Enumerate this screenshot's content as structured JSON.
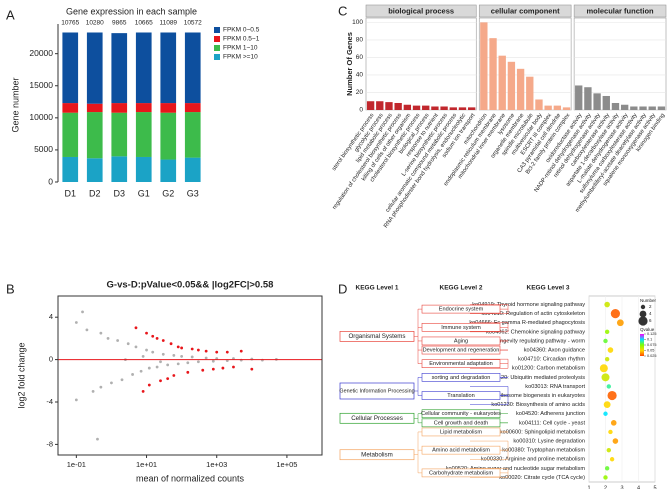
{
  "panel_labels": [
    "A",
    "B",
    "C",
    "D"
  ],
  "chart_data": [
    {
      "type": "stacked_bar",
      "title": "Gene expression in each sample",
      "y_label": "Gene number",
      "categories": [
        "D1",
        "D2",
        "D3",
        "G1",
        "G2",
        "G3"
      ],
      "annotations": [
        10765,
        10280,
        9865,
        10665,
        11089,
        10572
      ],
      "series": [
        {
          "name": "FPKM >=10",
          "color": "#1ba3c6",
          "values": [
            3900,
            3700,
            4000,
            3900,
            3500,
            3800
          ]
        },
        {
          "name": "FPKM 1~10",
          "color": "#3dbb4b",
          "values": [
            6900,
            7200,
            6800,
            7000,
            7300,
            7100
          ]
        },
        {
          "name": "FPKM 0.5~1",
          "color": "#e8161b",
          "values": [
            1500,
            1300,
            1500,
            1400,
            1500,
            1400
          ]
        },
        {
          "name": "FPKM 0~0.5",
          "color": "#0d4f9e",
          "values": [
            11000,
            11100,
            10900,
            11000,
            11000,
            11000
          ]
        }
      ],
      "ylim": [
        0,
        24000
      ],
      "yticks": [
        0,
        5000,
        10000,
        15000,
        20000
      ]
    },
    {
      "type": "scatter",
      "title": "G-vs-D:pValue<0.05&& |log2FC|>0.58",
      "x_label": "mean of normalized counts",
      "y_label": "log2 fold change",
      "log_x": true,
      "xlim": [
        0.03,
        1000000
      ],
      "xticks": [
        {
          "value": 0.1,
          "label": "1e-01"
        },
        {
          "value": 10,
          "label": "1e+01"
        },
        {
          "value": 1000,
          "label": "1e+03"
        },
        {
          "value": 100000,
          "label": "1e+05"
        }
      ],
      "ylim": [
        -9,
        6
      ],
      "yticks": [
        -8,
        -4,
        0,
        4
      ],
      "hline": 0,
      "hline_color": "#e8161b",
      "series": [
        {
          "color": "#b0b0b0",
          "x": [
            0.1,
            0.1,
            0.2,
            0.3,
            0.5,
            0.5,
            0.8,
            1,
            1.5,
            2,
            3,
            4,
            5,
            7,
            10,
            12,
            15,
            20,
            30,
            40,
            60,
            80,
            100,
            150,
            200,
            300,
            500,
            800,
            1000,
            2000,
            3000,
            5000,
            10000,
            20000,
            50000,
            0.15,
            0.4,
            2.5,
            8,
            25
          ],
          "y": [
            3.5,
            -3.8,
            2.8,
            -3,
            2.5,
            -2.6,
            2,
            -2.2,
            1.8,
            -1.9,
            1.5,
            -1.4,
            1.2,
            -1.1,
            0.9,
            -0.8,
            0.7,
            -0.7,
            0.5,
            -0.5,
            0.4,
            -0.4,
            0.3,
            -0.3,
            0.25,
            -0.2,
            0.15,
            -0.15,
            0.1,
            -0.1,
            0.1,
            -0.05,
            0.05,
            -0.05,
            0.02,
            4.5,
            -7.5,
            0,
            0.3,
            -0.2
          ]
        },
        {
          "color": "#e8161b",
          "x": [
            5,
            10,
            15,
            20,
            30,
            50,
            80,
            100,
            200,
            300,
            500,
            1000,
            2000,
            5000,
            8,
            12,
            25,
            40,
            60,
            150,
            400,
            800,
            1500,
            3000,
            10000
          ],
          "y": [
            3,
            2.5,
            2.2,
            2,
            1.8,
            1.5,
            1.2,
            1.1,
            1,
            0.9,
            0.8,
            0.7,
            0.7,
            0.8,
            -3,
            -2.4,
            -2,
            -1.8,
            -1.5,
            -1.2,
            -1,
            -0.9,
            -0.8,
            -0.7,
            -0.9
          ]
        }
      ]
    },
    {
      "type": "faceted_bar",
      "y_label": "Number  Of  Genes",
      "ylim": [
        0,
        105
      ],
      "yticks": [
        0,
        20,
        40,
        60,
        80,
        100
      ],
      "grid": true,
      "facets": [
        {
          "name": "biological process",
          "color": "#c1272d",
          "categories": [
            "sterol biosynthetic process",
            "glycolytic process",
            "lipid metabolic process",
            "regulation of cholesterol biosynthetic process",
            "killing of cells of other organism",
            "cholesterol biosynthetic process",
            "biological_process",
            "response to nutrient",
            "L-serine biosynthetic process",
            "cellular aromatic compound metabolic process",
            "RNA phosphodiester bond hydrolysis, endonucleolytic",
            "sodium ion transport"
          ],
          "values": [
            10,
            10,
            9,
            8,
            6,
            5,
            5,
            4,
            4,
            3,
            3,
            3
          ]
        },
        {
          "name": "cellular component",
          "color": "#f5a98a",
          "categories": [
            "mitochondrion",
            "endoplasmic reticulum membrane",
            "mitochondrial inner membrane",
            "lysosome",
            "organelle membrane",
            "spindle microtubule",
            "multivesicular body",
            "ESCRT III complex",
            "CA3 pyramidal cell dendrite",
            "Bcl-2 family protein complex"
          ],
          "values": [
            100,
            82,
            62,
            55,
            47,
            38,
            12,
            5,
            5,
            3
          ]
        },
        {
          "name": "molecular function",
          "color": "#8c8c8c",
          "categories": [
            "oxidoreductase activity",
            "NADP-retinol dehydrogenase activity",
            "retinol dehydrogenase activity",
            "carboxylesterase activity",
            "aspartate 1-decarboxylase activity",
            "L-malate dehydrogenase activity",
            "sulfonylurea carboxylesterase activity",
            "methylumbelliferyl-acetate deacetylase activity",
            "squalene monooxygenase activity",
            "kininogen binding"
          ],
          "values": [
            28,
            26,
            19,
            16,
            8,
            6,
            4,
            4,
            4,
            4
          ]
        }
      ]
    },
    {
      "type": "bubble",
      "headers": [
        "KEGG Level 1",
        "KEGG Level 2",
        "KEGG Level 3"
      ],
      "xlim": [
        1,
        5
      ],
      "xticks": [
        1,
        2,
        3,
        4,
        5
      ],
      "size_title": "Number",
      "size_ticks": [
        2,
        4,
        6
      ],
      "color_title": "Qvalue",
      "qlim": [
        0.025,
        0.125
      ],
      "qticks": [
        0.025,
        0.05,
        0.075,
        0.1,
        0.125
      ],
      "colorscale": [
        "#ff4500",
        "#ffd700",
        "#7fff00",
        "#00e5ff",
        "#ff00ff"
      ],
      "levels": [
        {
          "label": "Organismal Systems",
          "color": "#e8443a",
          "children": [
            {
              "label": "Endocrine system",
              "children": [
                {
                  "label": "ko04919: Thyroid hormone signaling pathway",
                  "x": 2.1,
                  "size": 3,
                  "q": 0.06
                },
                {
                  "label": "ko04810: Regulation of actin cytoskeleton",
                  "x": 2.6,
                  "size": 6,
                  "q": 0.03
                }
              ]
            },
            {
              "label": "Immune system",
              "children": [
                {
                  "label": "ko04666: Fc gamma R-mediated phagocytosis",
                  "x": 2.9,
                  "size": 4,
                  "q": 0.04
                },
                {
                  "label": "ko04062: Chemokine signaling pathway",
                  "x": 2.1,
                  "size": 2,
                  "q": 0.07
                }
              ]
            },
            {
              "label": "Aging",
              "children": [
                {
                  "label": "ko04212: Longevity regulating pathway - worm",
                  "x": 2.0,
                  "size": 2,
                  "q": 0.08
                }
              ]
            },
            {
              "label": "Development and regeneration",
              "children": [
                {
                  "label": "ko04360: Axon guidance",
                  "x": 2.3,
                  "size": 3,
                  "q": 0.05
                }
              ]
            },
            {
              "label": "Environmental adaptation",
              "children": [
                {
                  "label": "ko04710: Circadian rhythm",
                  "x": 2.1,
                  "size": 2,
                  "q": 0.06
                },
                {
                  "label": "ko01200: Carbon metabolism",
                  "x": 1.9,
                  "size": 5,
                  "q": 0.05
                }
              ]
            }
          ]
        },
        {
          "label": "Genetic Information Processing",
          "color": "#3a3ad0",
          "children": [
            {
              "label": "sorting and degradation",
              "children": [
                {
                  "label": "ko04120: Ubiquitin mediated proteolysis",
                  "x": 2.0,
                  "size": 5,
                  "q": 0.06
                }
              ]
            },
            {
              "label": "Translation",
              "children": [
                {
                  "label": "ko03013: RNA transport",
                  "x": 2.2,
                  "size": 2,
                  "q": 0.09
                },
                {
                  "label": "ko03008: Ribosome biogenesis in eukaryotes",
                  "x": 2.4,
                  "size": 6,
                  "q": 0.03
                },
                {
                  "label": "ko01230: Biosynthesis of amino acids",
                  "x": 2.1,
                  "size": 4,
                  "q": 0.05
                }
              ]
            }
          ]
        },
        {
          "label": "Cellular Processes",
          "color": "#2ca02c",
          "children": [
            {
              "label": "Cellular community - eukaryotes",
              "children": [
                {
                  "label": "ko04520: Adherens junction",
                  "x": 2.0,
                  "size": 2,
                  "q": 0.1
                }
              ]
            },
            {
              "label": "Cell growth and death",
              "children": [
                {
                  "label": "ko04111: Cell cycle - yeast",
                  "x": 2.5,
                  "size": 3,
                  "q": 0.04
                }
              ]
            }
          ]
        },
        {
          "label": "Metabolism",
          "color": "#f4a460",
          "children": [
            {
              "label": "Lipid metabolism",
              "children": [
                {
                  "label": "ko00600: Sphingolipid metabolism",
                  "x": 2.3,
                  "size": 2,
                  "q": 0.05
                }
              ]
            },
            {
              "label": "Amino acid metabolism",
              "children": [
                {
                  "label": "ko00310: Lysine degradation",
                  "x": 2.6,
                  "size": 3,
                  "q": 0.04
                },
                {
                  "label": "ko00380: Tryptophan metabolism",
                  "x": 2.2,
                  "size": 2,
                  "q": 0.06
                },
                {
                  "label": "ko00330: Arginine and proline metabolism",
                  "x": 2.4,
                  "size": 2,
                  "q": 0.05
                }
              ]
            },
            {
              "label": "Carbohydrate metabolism",
              "children": [
                {
                  "label": "ko00520: Amino sugar and nucleotide sugar metabolism",
                  "x": 2.1,
                  "size": 2,
                  "q": 0.08
                },
                {
                  "label": "ko00020: Citrate cycle (TCA cycle)",
                  "x": 2.0,
                  "size": 2,
                  "q": 0.07
                }
              ]
            }
          ]
        }
      ]
    }
  ]
}
